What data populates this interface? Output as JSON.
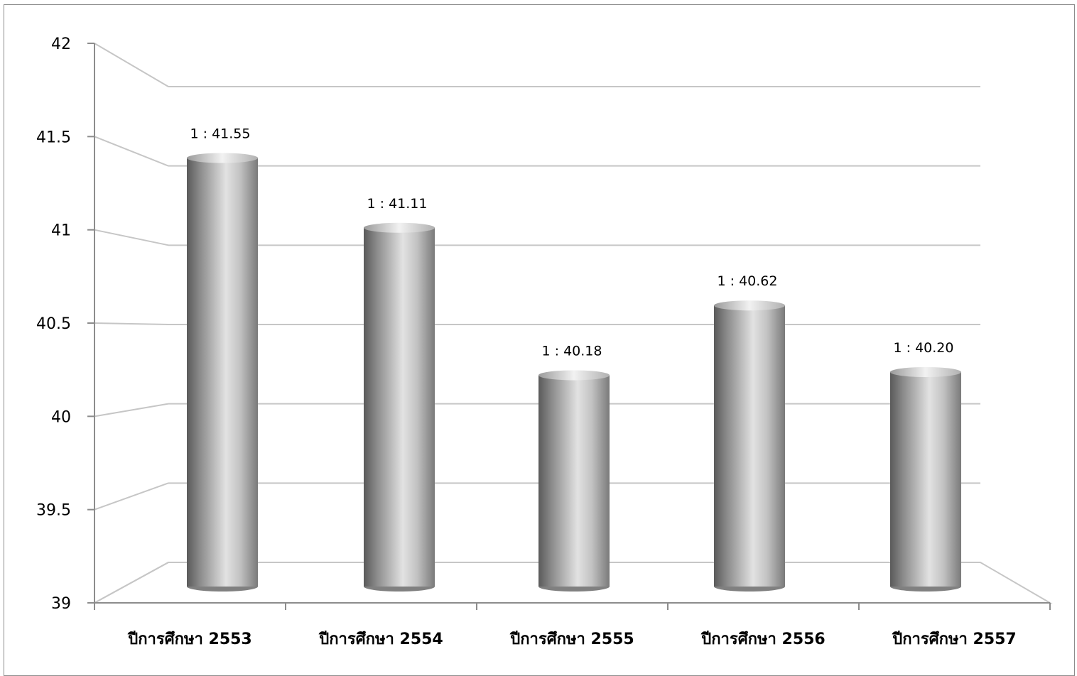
{
  "chart_data": {
    "type": "bar",
    "style": "3d-cylinder",
    "title": "",
    "xlabel": "",
    "ylabel": "",
    "categories": [
      "ปีการศึกษา 2553",
      "ปีการศึกษา 2554",
      "ปีการศึกษา 2555",
      "ปีการศึกษา 2556",
      "ปีการศึกษา 2557"
    ],
    "values": [
      41.55,
      41.11,
      40.18,
      40.62,
      40.2
    ],
    "data_labels": [
      "1 : 41.55",
      "1 : 41.11",
      "1 : 40.18",
      "1 : 40.62",
      "1 : 40.20"
    ],
    "ylim": [
      39,
      42
    ],
    "yticks": [
      "39",
      "39.5",
      "40",
      "40.5",
      "41",
      "41.5",
      "42"
    ],
    "grid": true,
    "legend": "none",
    "bar_color": "#a6a6a6"
  }
}
